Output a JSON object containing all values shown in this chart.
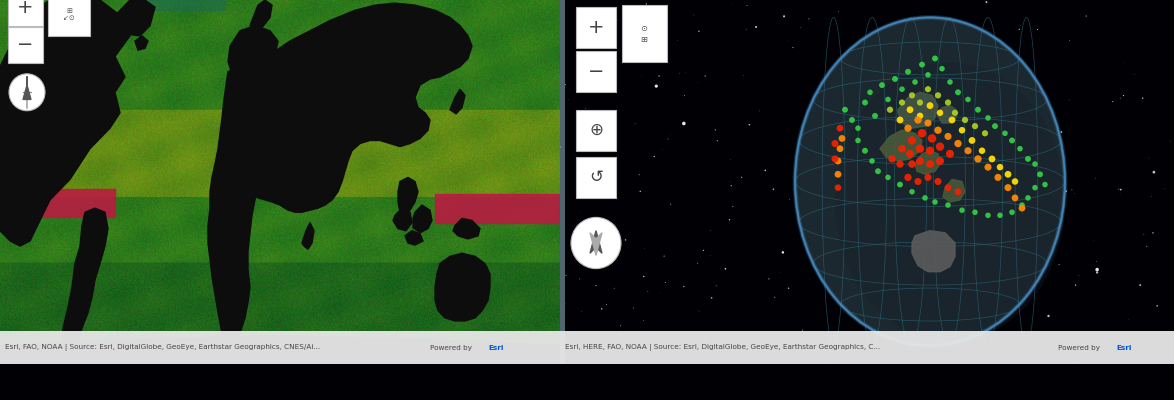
{
  "left_panel": {
    "bg_color": "#2a5c1a",
    "map_colors": {
      "ocean_deep": "#1e4d10",
      "ocean_mid": "#3a7a20",
      "ocean_light": "#6aaa38",
      "ocean_yellow": "#b8cc3a",
      "land": "#0d0d0d",
      "red_band": "#c0204a",
      "teal": "#1a6a5a"
    },
    "attribution_left": "Esri, FAO, NOAA | Source: Esri, DigitalGlobe, GeoEye, Earthstar Geographics, CNES/Ai...",
    "powered_by": "Powered by Esri"
  },
  "right_panel": {
    "bg_color": "#000005",
    "globe_fill": "#1c2830",
    "globe_border": "#5599bb",
    "grid_color": "#2a6677",
    "land_color": "#4a4a4a",
    "attribution_right": "Esri, HERE, FAO, NOAA | Source: Esri, DigitalGlobe, GeoEye, Earthstar Geographics, C...",
    "powered_by": "Powered by Esri",
    "alert_colors": [
      "#33cc44",
      "#aacc22",
      "#ffdd00",
      "#ff8800",
      "#ee2200"
    ]
  },
  "attr_bar_color": "#e8e8e8",
  "attr_text_color": "#444444",
  "powered_color": "#0055cc"
}
